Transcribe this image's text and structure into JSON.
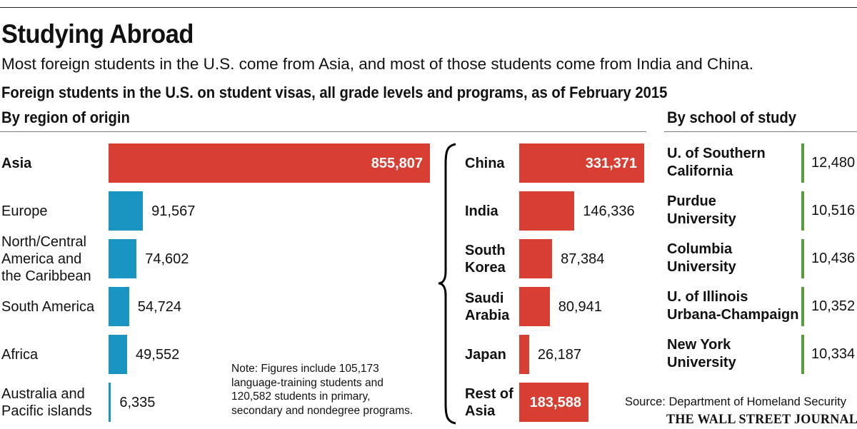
{
  "title": "Studying Abroad",
  "subtitle": "Most foreign students in the U.S. come from Asia, and most of those students come from India and China.",
  "heading": "Foreign students in the U.S. on student visas, all grade levels and programs, as of February 2015",
  "note": "Note: Figures include 105,173\nlanguage-training students and\n120,582 students in primary,\nsecondary and nondegree programs.",
  "source": "Source: Department of Homeland Security",
  "brand": "THE WALL STREET JOURNAL.",
  "colors": {
    "region": "#1a95c1",
    "asia": "#d83e32",
    "school": "#5a9c3c"
  },
  "chart_data": [
    {
      "type": "bar",
      "title": "By region of origin",
      "categories": [
        "Asia",
        "Europe",
        "North/Central\nAmerica and\nthe Caribbean",
        "South America",
        "Africa",
        "Australia and\nPacific islands"
      ],
      "values": [
        855807,
        91567,
        74602,
        54724,
        49552,
        6335
      ],
      "value_labels": [
        "855,807",
        "91,567",
        "74,602",
        "54,724",
        "49,552",
        "6,335"
      ],
      "orientation": "horizontal"
    },
    {
      "type": "bar",
      "title": "",
      "categories": [
        "China",
        "India",
        "South\nKorea",
        "Saudi\nArabia",
        "Japan",
        "Rest of\nAsia"
      ],
      "values": [
        331371,
        146336,
        87384,
        80941,
        26187,
        183588
      ],
      "value_labels": [
        "331,371",
        "146,336",
        "87,384",
        "80,941",
        "26,187",
        "183,588"
      ],
      "orientation": "horizontal"
    },
    {
      "type": "bar",
      "title": "By school of study",
      "categories": [
        "U. of Southern\nCalifornia",
        "Purdue\nUniversity",
        "Columbia\nUniversity",
        "U. of Illinois\nUrbana-Champaign",
        "New York\nUniversity"
      ],
      "values": [
        12480,
        10516,
        10436,
        10352,
        10334
      ],
      "value_labels": [
        "12,480",
        "10,516",
        "10,436",
        "10,352",
        "10,334"
      ],
      "orientation": "horizontal"
    }
  ]
}
